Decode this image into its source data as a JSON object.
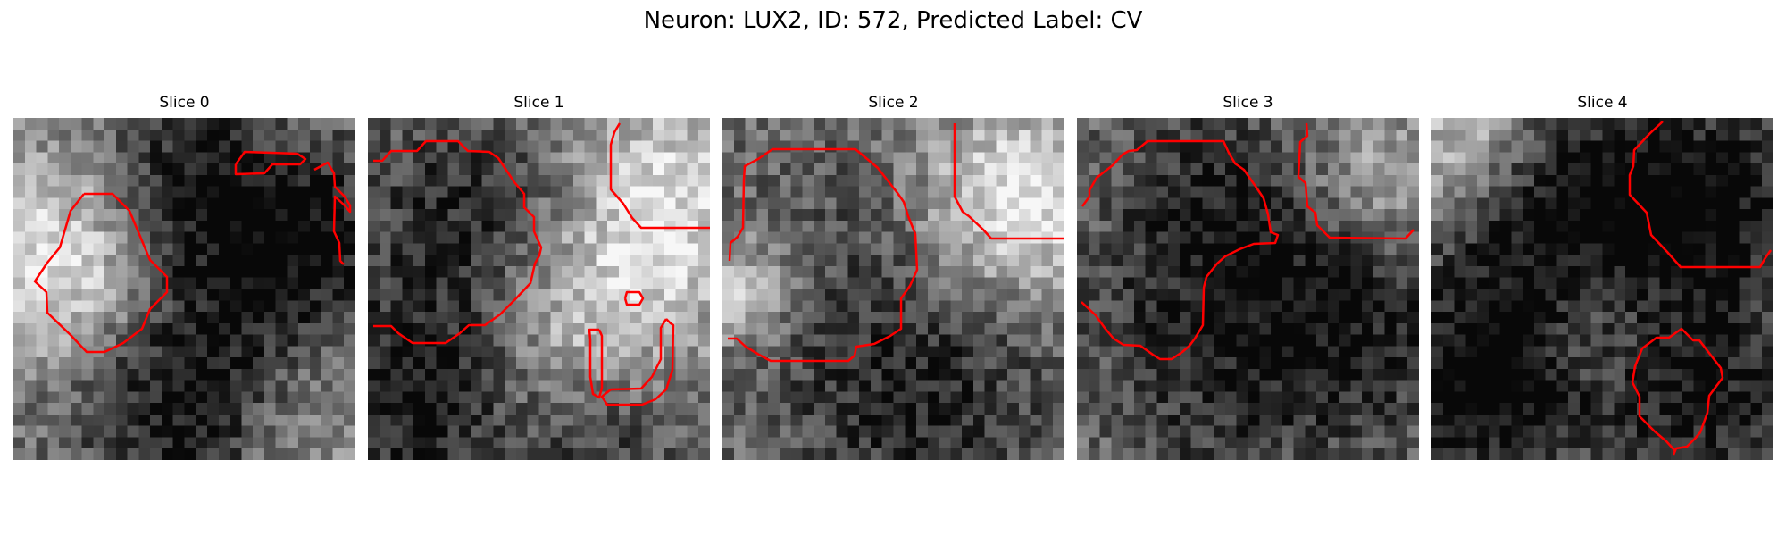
{
  "figure": {
    "title": "Neuron: LUX2, ID: 572, Predicted Label: CV"
  },
  "colors": {
    "contour": "#ff0000",
    "background": "#ffffff",
    "colormap": "gray"
  },
  "slices": [
    {
      "title": "Slice 0"
    },
    {
      "title": "Slice 1"
    },
    {
      "title": "Slice 2"
    },
    {
      "title": "Slice 3"
    },
    {
      "title": "Slice 4"
    }
  ]
}
